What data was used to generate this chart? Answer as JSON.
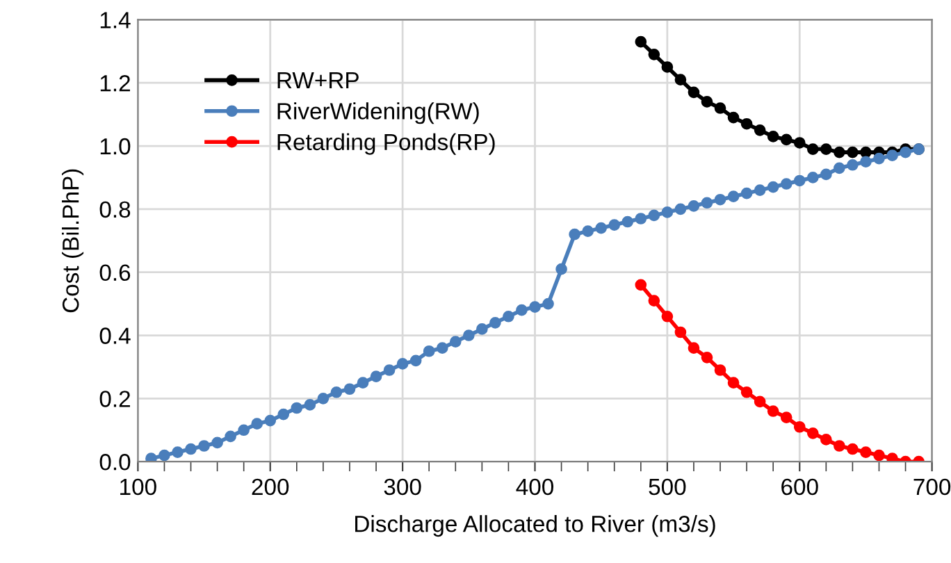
{
  "chart_data": {
    "type": "line",
    "xlabel": "Discharge Allocated to River (m3/s)",
    "ylabel": "Cost (Bil.PhP)",
    "xlim": [
      100,
      700
    ],
    "xticks": [
      100,
      200,
      300,
      400,
      500,
      600,
      700
    ],
    "ylim": [
      0,
      1.4
    ],
    "yticks": [
      {
        "value": 0,
        "label": "0.0"
      },
      0.2,
      0.4,
      0.6,
      0.8,
      {
        "value": 1,
        "label": "1.0"
      },
      1.2,
      1.4
    ],
    "grid": true,
    "legend": "top left",
    "marker": "circle",
    "line_style": "solid",
    "series": [
      {
        "name": "RW+RP",
        "color": "#000000",
        "x": [
          480,
          490,
          500,
          510,
          520,
          530,
          540,
          550,
          560,
          570,
          580,
          590,
          600,
          610,
          620,
          630,
          640,
          650,
          660,
          670,
          680,
          690
        ],
        "values": [
          1.33,
          1.29,
          1.25,
          1.21,
          1.17,
          1.14,
          1.12,
          1.09,
          1.07,
          1.05,
          1.03,
          1.02,
          1.01,
          0.99,
          0.99,
          0.98,
          0.98,
          0.98,
          0.98,
          0.98,
          0.99,
          0.99
        ]
      },
      {
        "name": "RiverWidening(RW)",
        "color": "#4a7ebb",
        "x": [
          110,
          120,
          130,
          140,
          150,
          160,
          170,
          180,
          190,
          200,
          210,
          220,
          230,
          240,
          250,
          260,
          270,
          280,
          290,
          300,
          310,
          320,
          330,
          340,
          350,
          360,
          370,
          380,
          390,
          400,
          410,
          420,
          430,
          440,
          450,
          460,
          470,
          480,
          490,
          500,
          510,
          520,
          530,
          540,
          550,
          560,
          570,
          580,
          590,
          600,
          610,
          620,
          630,
          640,
          650,
          660,
          670,
          680,
          690
        ],
        "values": [
          0.01,
          0.02,
          0.03,
          0.04,
          0.05,
          0.06,
          0.08,
          0.1,
          0.12,
          0.13,
          0.15,
          0.17,
          0.18,
          0.2,
          0.22,
          0.23,
          0.25,
          0.27,
          0.29,
          0.31,
          0.32,
          0.35,
          0.36,
          0.38,
          0.4,
          0.42,
          0.44,
          0.46,
          0.48,
          0.49,
          0.5,
          0.61,
          0.72,
          0.73,
          0.74,
          0.75,
          0.76,
          0.77,
          0.78,
          0.79,
          0.8,
          0.81,
          0.82,
          0.83,
          0.84,
          0.85,
          0.86,
          0.87,
          0.88,
          0.89,
          0.9,
          0.91,
          0.93,
          0.94,
          0.95,
          0.96,
          0.97,
          0.98,
          0.99
        ]
      },
      {
        "name": "Retarding Ponds(RP)",
        "color": "#ff0000",
        "x": [
          480,
          490,
          500,
          510,
          520,
          530,
          540,
          550,
          560,
          570,
          580,
          590,
          600,
          610,
          620,
          630,
          640,
          650,
          660,
          670,
          680,
          690
        ],
        "values": [
          0.56,
          0.51,
          0.46,
          0.41,
          0.36,
          0.33,
          0.29,
          0.25,
          0.22,
          0.19,
          0.16,
          0.14,
          0.11,
          0.09,
          0.07,
          0.05,
          0.04,
          0.03,
          0.02,
          0.01,
          0.0,
          0.0
        ]
      }
    ]
  }
}
